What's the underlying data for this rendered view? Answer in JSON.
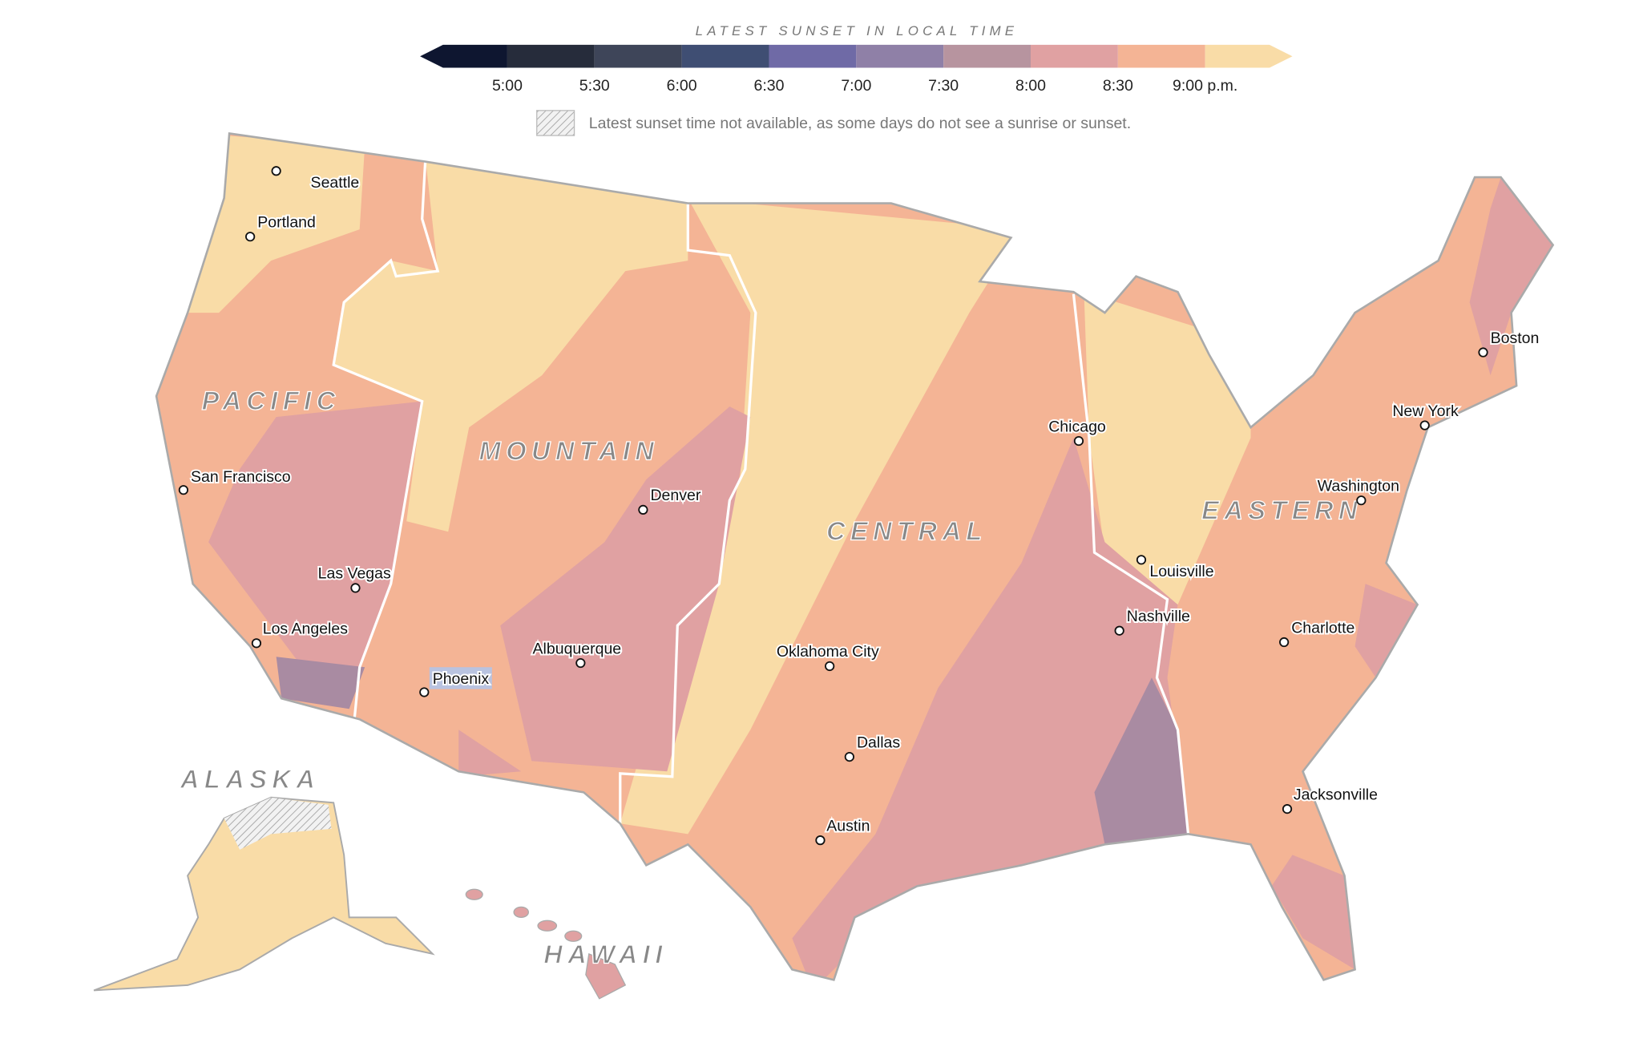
{
  "legend": {
    "title": "LATEST SUNSET IN LOCAL TIME",
    "ticks": [
      "5:00",
      "5:30",
      "6:00",
      "6:30",
      "7:00",
      "7:30",
      "8:00",
      "8:30",
      "9:00 p.m."
    ],
    "colors": [
      "#0e1630",
      "#262c3b",
      "#3e4559",
      "#3f4e73",
      "#6f6aa6",
      "#8f80a7",
      "#b7949f",
      "#e0a1a2",
      "#f4b495",
      "#f9dca7"
    ],
    "na_note": "Latest sunset time not available, as some days do not see a sunrise or sunset."
  },
  "zones": {
    "pacific": "PACIFIC",
    "mountain": "MOUNTAIN",
    "central": "CENTRAL",
    "eastern": "EASTERN",
    "alaska": "ALASKA",
    "hawaii": "HAWAII"
  },
  "cities": [
    "Seattle",
    "Portland",
    "San Francisco",
    "Las Vegas",
    "Los Angeles",
    "Phoenix",
    "Albuquerque",
    "Denver",
    "Oklahoma City",
    "Dallas",
    "Austin",
    "Chicago",
    "Nashville",
    "Louisville",
    "Charlotte",
    "Jacksonville",
    "Washington",
    "New York",
    "Boston"
  ]
}
